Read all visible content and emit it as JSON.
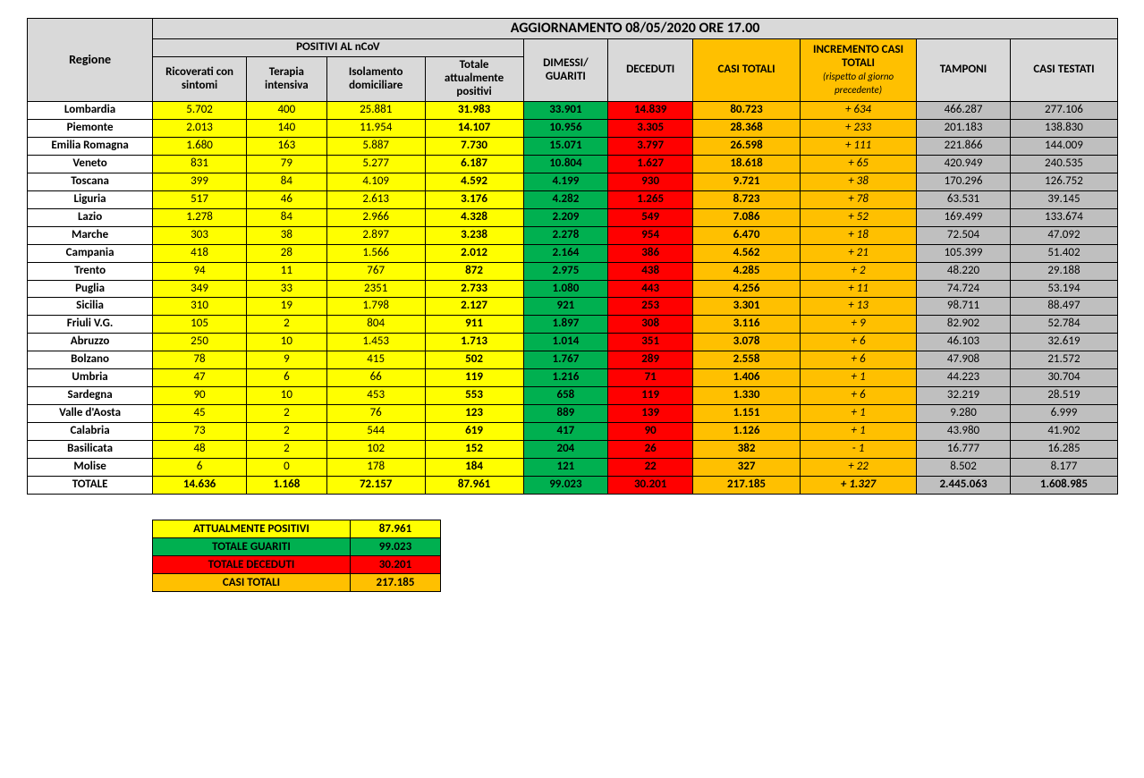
{
  "title": "AGGIORNAMENTO 08/05/2020 ORE 17.00",
  "headers": {
    "regione": "Regione",
    "positivi_group": "POSITIVI AL nCoV",
    "ricoverati": "Ricoverati con sintomi",
    "terapia": "Terapia intensiva",
    "isolamento": "Isolamento domiciliare",
    "tot_pos": "Totale attualmente positivi",
    "dimessi": "DIMESSI/ GUARITI",
    "deceduti": "DECEDUTI",
    "casi_totali": "CASI TOTALI",
    "incremento": "INCREMENTO CASI  TOTALI",
    "incremento_sub": "(rispetto al giorno precedente)",
    "tamponi": "TAMPONI",
    "casi_testati": "CASI TESTATI"
  },
  "rows": [
    {
      "r": "Lombardia",
      "a": "5.702",
      "b": "400",
      "c": "25.881",
      "d": "31.983",
      "e": "33.901",
      "f": "14.839",
      "g": "80.723",
      "h": "+ 634",
      "i": "466.287",
      "j": "277.106"
    },
    {
      "r": "Piemonte",
      "a": "2.013",
      "b": "140",
      "c": "11.954",
      "d": "14.107",
      "e": "10.956",
      "f": "3.305",
      "g": "28.368",
      "h": "+ 233",
      "i": "201.183",
      "j": "138.830"
    },
    {
      "r": "Emilia Romagna",
      "a": "1.680",
      "b": "163",
      "c": "5.887",
      "d": "7.730",
      "e": "15.071",
      "f": "3.797",
      "g": "26.598",
      "h": "+ 111",
      "i": "221.866",
      "j": "144.009"
    },
    {
      "r": "Veneto",
      "a": "831",
      "b": "79",
      "c": "5.277",
      "d": "6.187",
      "e": "10.804",
      "f": "1.627",
      "g": "18.618",
      "h": "+ 65",
      "i": "420.949",
      "j": "240.535"
    },
    {
      "r": "Toscana",
      "a": "399",
      "b": "84",
      "c": "4.109",
      "d": "4.592",
      "e": "4.199",
      "f": "930",
      "g": "9.721",
      "h": "+ 38",
      "i": "170.296",
      "j": "126.752"
    },
    {
      "r": "Liguria",
      "a": "517",
      "b": "46",
      "c": "2.613",
      "d": "3.176",
      "e": "4.282",
      "f": "1.265",
      "g": "8.723",
      "h": "+ 78",
      "i": "63.531",
      "j": "39.145"
    },
    {
      "r": "Lazio",
      "a": "1.278",
      "b": "84",
      "c": "2.966",
      "d": "4.328",
      "e": "2.209",
      "f": "549",
      "g": "7.086",
      "h": "+ 52",
      "i": "169.499",
      "j": "133.674"
    },
    {
      "r": "Marche",
      "a": "303",
      "b": "38",
      "c": "2.897",
      "d": "3.238",
      "e": "2.278",
      "f": "954",
      "g": "6.470",
      "h": "+ 18",
      "i": "72.504",
      "j": "47.092"
    },
    {
      "r": "Campania",
      "a": "418",
      "b": "28",
      "c": "1.566",
      "d": "2.012",
      "e": "2.164",
      "f": "386",
      "g": "4.562",
      "h": "+ 21",
      "i": "105.399",
      "j": "51.402"
    },
    {
      "r": "Trento",
      "a": "94",
      "b": "11",
      "c": "767",
      "d": "872",
      "e": "2.975",
      "f": "438",
      "g": "4.285",
      "h": "+ 2",
      "i": "48.220",
      "j": "29.188"
    },
    {
      "r": "Puglia",
      "a": "349",
      "b": "33",
      "c": "2351",
      "d": "2.733",
      "e": "1.080",
      "f": "443",
      "g": "4.256",
      "h": "+ 11",
      "i": "74.724",
      "j": "53.194"
    },
    {
      "r": "Sicilia",
      "a": "310",
      "b": "19",
      "c": "1.798",
      "d": "2.127",
      "e": "921",
      "f": "253",
      "g": "3.301",
      "h": "+ 13",
      "i": "98.711",
      "j": "88.497"
    },
    {
      "r": "Friuli V.G.",
      "a": "105",
      "b": "2",
      "c": "804",
      "d": "911",
      "e": "1.897",
      "f": "308",
      "g": "3.116",
      "h": "+ 9",
      "i": "82.902",
      "j": "52.784"
    },
    {
      "r": "Abruzzo",
      "a": "250",
      "b": "10",
      "c": "1.453",
      "d": "1.713",
      "e": "1.014",
      "f": "351",
      "g": "3.078",
      "h": "+ 6",
      "i": "46.103",
      "j": "32.619"
    },
    {
      "r": "Bolzano",
      "a": "78",
      "b": "9",
      "c": "415",
      "d": "502",
      "e": "1.767",
      "f": "289",
      "g": "2.558",
      "h": "+ 6",
      "i": "47.908",
      "j": "21.572"
    },
    {
      "r": "Umbria",
      "a": "47",
      "b": "6",
      "c": "66",
      "d": "119",
      "e": "1.216",
      "f": "71",
      "g": "1.406",
      "h": "+ 1",
      "i": "44.223",
      "j": "30.704"
    },
    {
      "r": "Sardegna",
      "a": "90",
      "b": "10",
      "c": "453",
      "d": "553",
      "e": "658",
      "f": "119",
      "g": "1.330",
      "h": "+ 6",
      "i": "32.219",
      "j": "28.519"
    },
    {
      "r": "Valle d'Aosta",
      "a": "45",
      "b": "2",
      "c": "76",
      "d": "123",
      "e": "889",
      "f": "139",
      "g": "1.151",
      "h": "+ 1",
      "i": "9.280",
      "j": "6.999"
    },
    {
      "r": "Calabria",
      "a": "73",
      "b": "2",
      "c": "544",
      "d": "619",
      "e": "417",
      "f": "90",
      "g": "1.126",
      "h": "+ 1",
      "i": "43.980",
      "j": "41.902"
    },
    {
      "r": "Basilicata",
      "a": "48",
      "b": "2",
      "c": "102",
      "d": "152",
      "e": "204",
      "f": "26",
      "g": "382",
      "h": "- 1",
      "i": "16.777",
      "j": "16.285"
    },
    {
      "r": "Molise",
      "a": "6",
      "b": "0",
      "c": "178",
      "d": "184",
      "e": "121",
      "f": "22",
      "g": "327",
      "h": "+ 22",
      "i": "8.502",
      "j": "8.177"
    }
  ],
  "totale": {
    "r": "TOTALE",
    "a": "14.636",
    "b": "1.168",
    "c": "72.157",
    "d": "87.961",
    "e": "99.023",
    "f": "30.201",
    "g": "217.185",
    "h": "+ 1.327",
    "i": "2.445.063",
    "j": "1.608.985"
  },
  "summary": {
    "att_pos_l": "ATTUALMENTE POSITIVI",
    "att_pos_v": "87.961",
    "guariti_l": "TOTALE GUARITI",
    "guariti_v": "99.023",
    "deceduti_l": "TOTALE DECEDUTI",
    "deceduti_v": "30.201",
    "casi_l": "CASI TOTALI",
    "casi_v": "217.185"
  },
  "colors": {
    "yellow": "#ffff00",
    "green": "#00b050",
    "red": "#ff0000",
    "orange": "#ffc000",
    "gray": "#bfbfbf",
    "hdr": "#d9d9d9"
  }
}
